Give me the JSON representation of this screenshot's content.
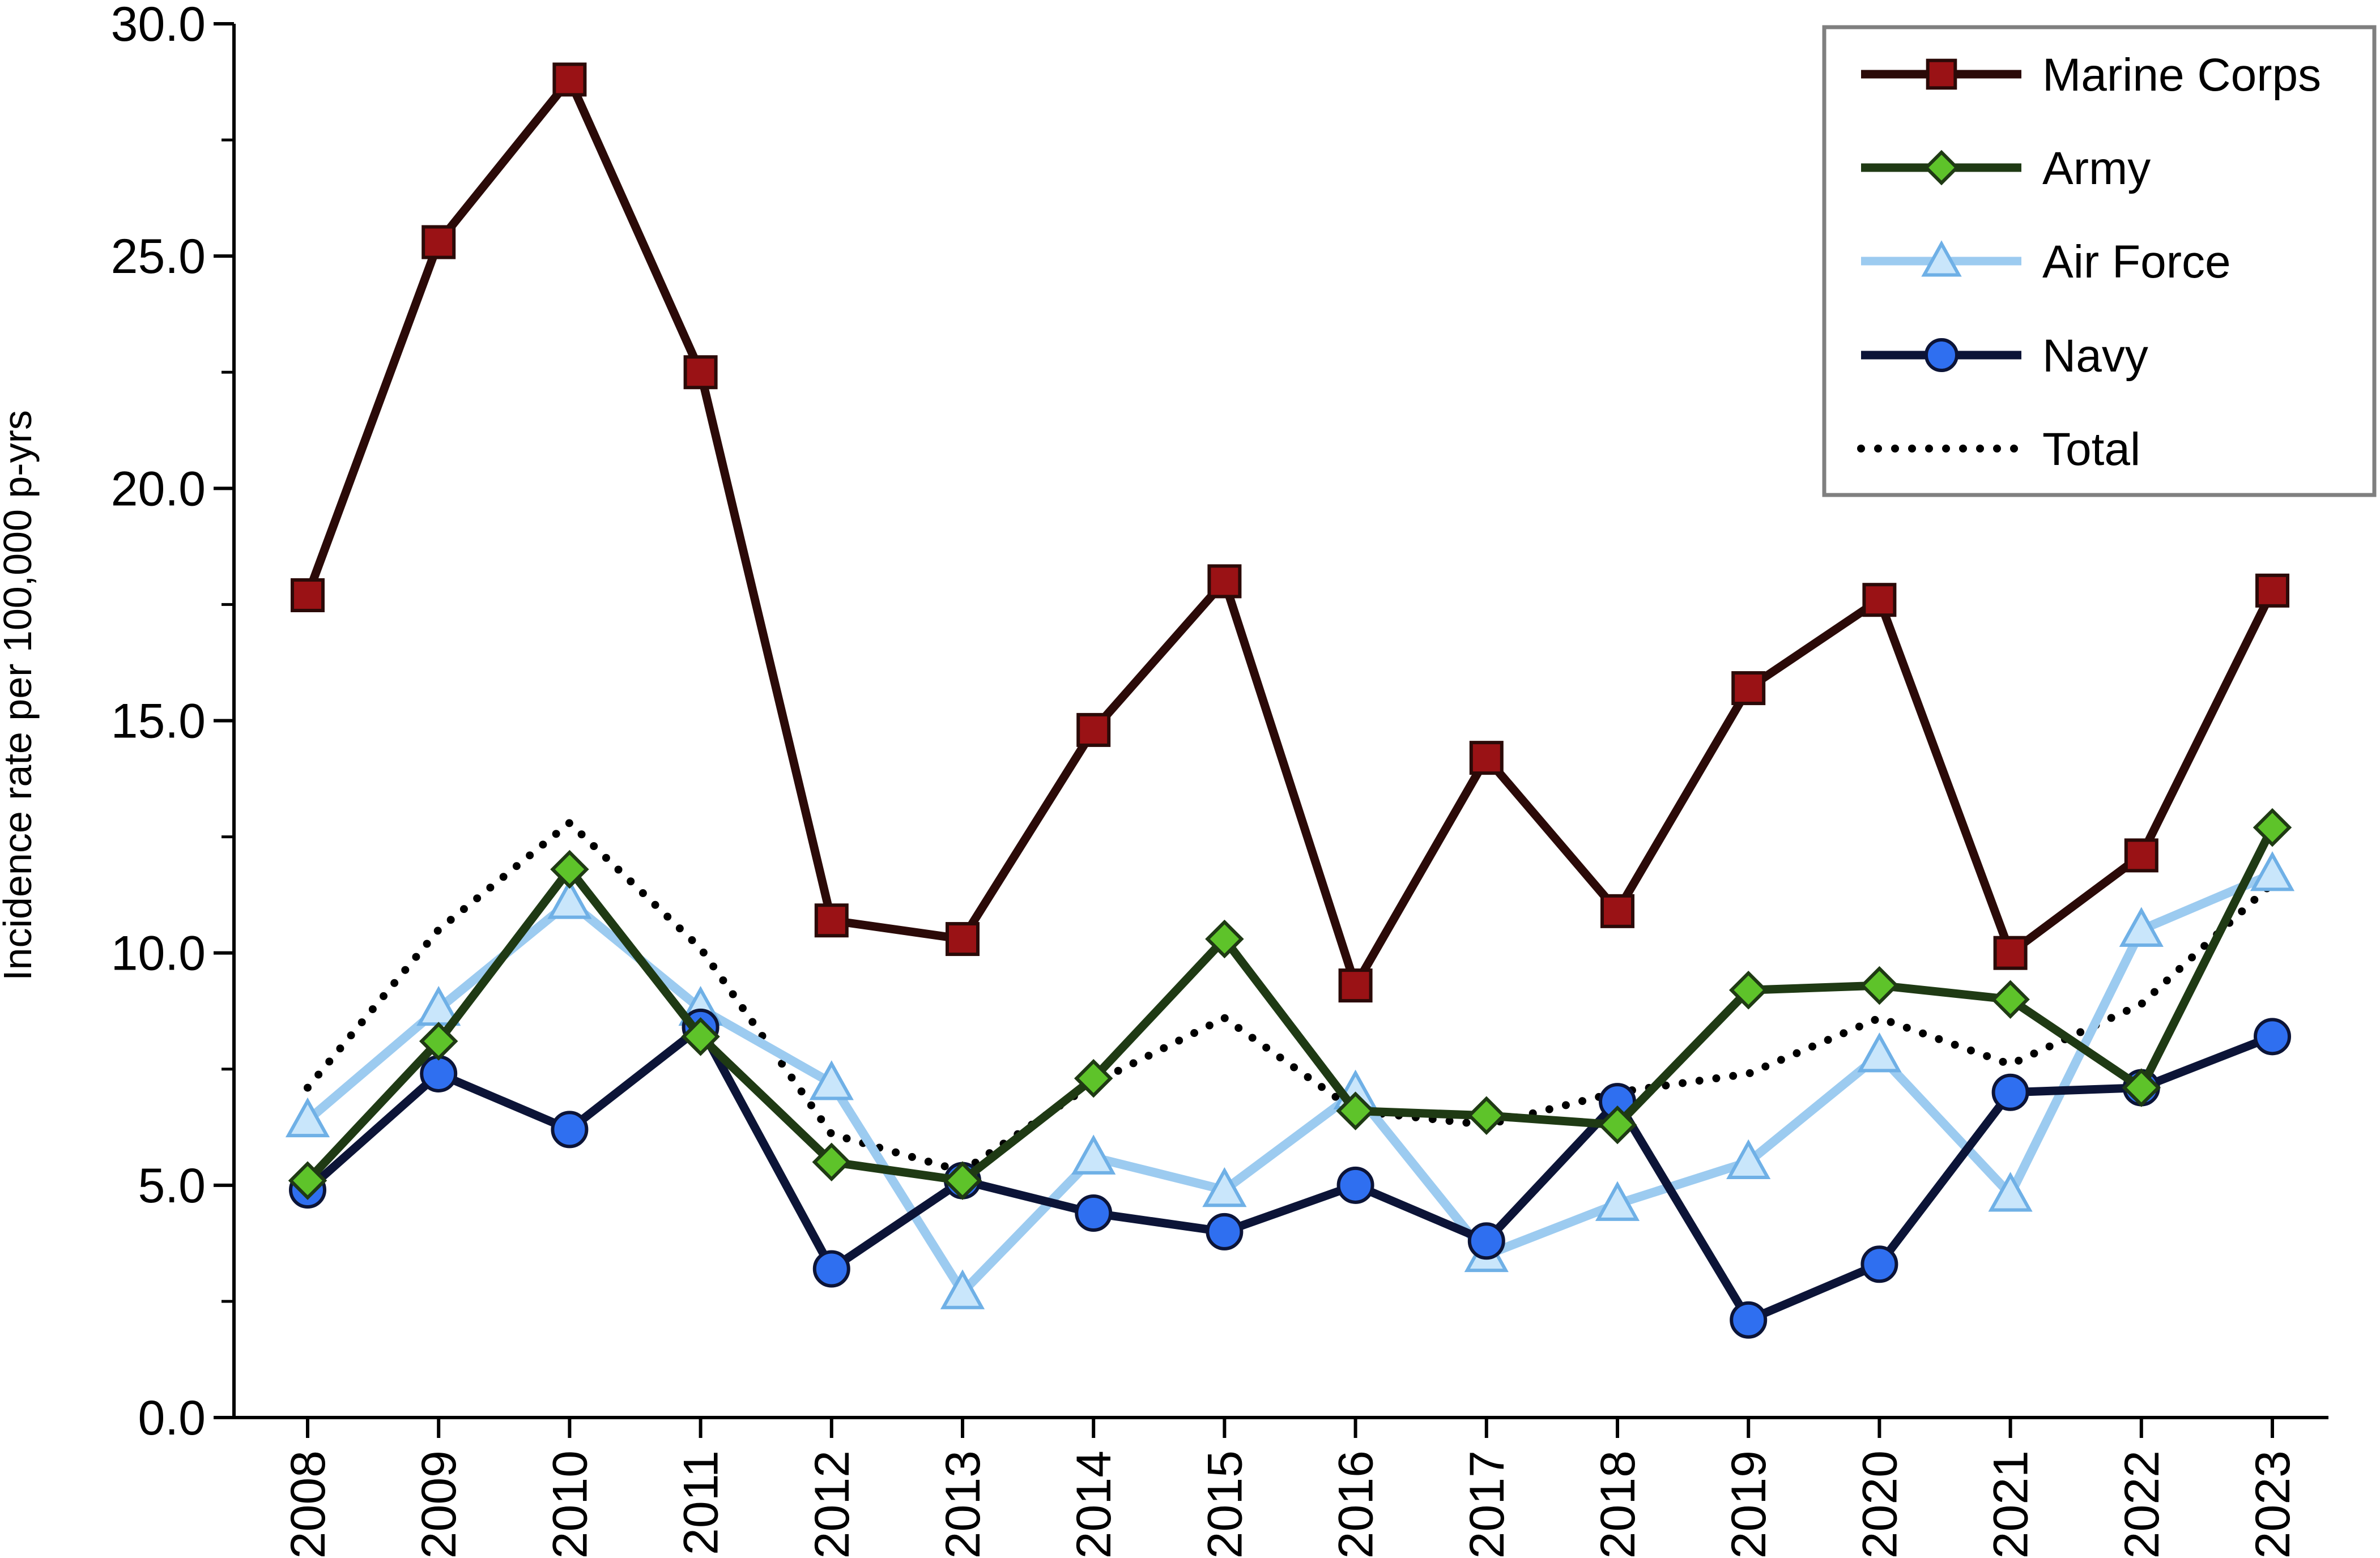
{
  "chart_data": {
    "type": "line",
    "title": "",
    "xlabel": "",
    "ylabel": "Incidence rate per 100,000 p-yrs",
    "categories": [
      "2008",
      "2009",
      "2010",
      "2011",
      "2012",
      "2013",
      "2014",
      "2015",
      "2016",
      "2017",
      "2018",
      "2019",
      "2020",
      "2021",
      "2022",
      "2023"
    ],
    "ylim": [
      0,
      30
    ],
    "yticks": [
      "0.0",
      "5.0",
      "10.0",
      "15.0",
      "20.0",
      "25.0",
      "30.0"
    ],
    "grid": false,
    "legend_position": "top-right",
    "series": [
      {
        "name": "Marine Corps",
        "key": "marine",
        "color": "#2b0a08",
        "marker": "square",
        "marker_fill": "#9a1215",
        "dash": "solid",
        "values": [
          17.7,
          25.3,
          28.8,
          22.5,
          10.7,
          10.3,
          14.8,
          18.0,
          9.3,
          14.2,
          10.9,
          15.7,
          17.6,
          10.0,
          12.1,
          17.8
        ]
      },
      {
        "name": "Army",
        "key": "army",
        "color": "#1f3a14",
        "marker": "diamond",
        "marker_fill": "#5ec32a",
        "dash": "solid",
        "values": [
          5.1,
          8.1,
          11.8,
          8.2,
          5.5,
          5.1,
          7.3,
          10.3,
          6.6,
          6.5,
          6.3,
          9.2,
          9.3,
          9.0,
          7.1,
          12.7
        ]
      },
      {
        "name": "Air Force",
        "key": "airforce",
        "color": "#9ccbf0",
        "marker": "triangle",
        "marker_fill": "#c9e6fb",
        "dash": "solid",
        "values": [
          6.4,
          8.8,
          11.1,
          8.8,
          7.2,
          2.7,
          5.6,
          4.9,
          7.0,
          3.5,
          4.6,
          5.5,
          7.8,
          4.8,
          10.5,
          11.7
        ]
      },
      {
        "name": "Navy",
        "key": "navy",
        "color": "#0c1437",
        "marker": "circle",
        "marker_fill": "#2f6ff0",
        "dash": "solid",
        "values": [
          4.9,
          7.4,
          6.2,
          8.4,
          3.2,
          5.1,
          4.4,
          4.0,
          5.0,
          3.8,
          6.8,
          2.1,
          3.3,
          7.0,
          7.1,
          8.2
        ]
      },
      {
        "name": "Total",
        "key": "total",
        "color": "#000000",
        "marker": "none",
        "marker_fill": "",
        "dash": "dotted",
        "values": [
          7.1,
          10.5,
          12.8,
          10.1,
          6.1,
          5.3,
          7.2,
          8.6,
          6.6,
          6.3,
          7.0,
          7.4,
          8.6,
          7.6,
          8.9,
          11.5
        ]
      }
    ]
  }
}
